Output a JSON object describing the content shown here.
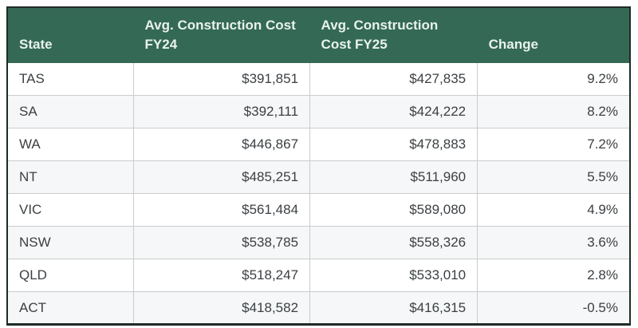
{
  "colors": {
    "header_bg": "#346955",
    "header_text": "#e9f2ec",
    "row_bg": "#ffffff",
    "row_alt_bg": "#f6f7f8",
    "body_text": "#3c4043",
    "grid_line": "#c9cdcb",
    "outer_border": "#1f2b25"
  },
  "table": {
    "headers": {
      "state": "State",
      "fy24": "Avg. Construction Cost FY24",
      "fy25": "Avg. Construction Cost FY25",
      "change": "Change"
    },
    "rows": [
      {
        "state": "TAS",
        "fy24": "$391,851",
        "fy25": "$427,835",
        "change": "9.2%"
      },
      {
        "state": "SA",
        "fy24": "$392,111",
        "fy25": "$424,222",
        "change": "8.2%"
      },
      {
        "state": "WA",
        "fy24": "$446,867",
        "fy25": "$478,883",
        "change": "7.2%"
      },
      {
        "state": "NT",
        "fy24": "$485,251",
        "fy25": "$511,960",
        "change": "5.5%"
      },
      {
        "state": "VIC",
        "fy24": "$561,484",
        "fy25": "$589,080",
        "change": "4.9%"
      },
      {
        "state": "NSW",
        "fy24": "$538,785",
        "fy25": "$558,326",
        "change": "3.6%"
      },
      {
        "state": "QLD",
        "fy24": "$518,247",
        "fy25": "$533,010",
        "change": "2.8%"
      },
      {
        "state": "ACT",
        "fy24": "$418,582",
        "fy25": "$416,315",
        "change": "-0.5%"
      }
    ]
  },
  "chart_data": {
    "type": "table",
    "title": "",
    "columns": [
      "State",
      "Avg. Construction Cost FY24",
      "Avg. Construction Cost FY25",
      "Change"
    ],
    "rows": [
      {
        "state": "TAS",
        "avg_cost_fy24": 391851,
        "avg_cost_fy25": 427835,
        "change_pct": 9.2
      },
      {
        "state": "SA",
        "avg_cost_fy24": 392111,
        "avg_cost_fy25": 424222,
        "change_pct": 8.2
      },
      {
        "state": "WA",
        "avg_cost_fy24": 446867,
        "avg_cost_fy25": 478883,
        "change_pct": 7.2
      },
      {
        "state": "NT",
        "avg_cost_fy24": 485251,
        "avg_cost_fy25": 511960,
        "change_pct": 5.5
      },
      {
        "state": "VIC",
        "avg_cost_fy24": 561484,
        "avg_cost_fy25": 589080,
        "change_pct": 4.9
      },
      {
        "state": "NSW",
        "avg_cost_fy24": 538785,
        "avg_cost_fy25": 558326,
        "change_pct": 3.6
      },
      {
        "state": "QLD",
        "avg_cost_fy24": 518247,
        "avg_cost_fy25": 533010,
        "change_pct": 2.8
      },
      {
        "state": "ACT",
        "avg_cost_fy24": 418582,
        "avg_cost_fy25": 416315,
        "change_pct": -0.5
      }
    ]
  }
}
